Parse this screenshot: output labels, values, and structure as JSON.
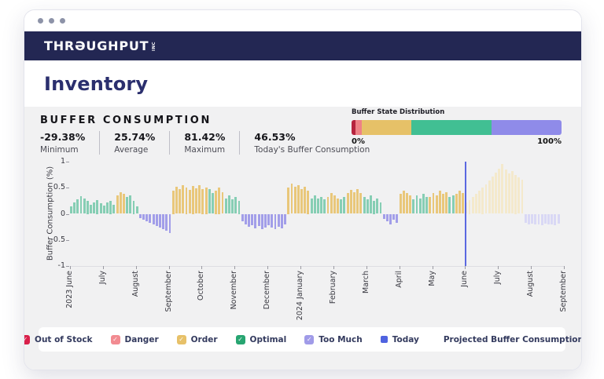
{
  "header": {
    "logo_prefix": "THR",
    "logo_o": "Ə",
    "logo_rest": "UGHPUT",
    "logo_suffix": "INC"
  },
  "page": {
    "title": "Inventory"
  },
  "panel": {
    "section_title": "BUFFER CONSUMPTION",
    "stats": [
      {
        "value": "-29.38%",
        "label": "Minimum"
      },
      {
        "value": "25.74%",
        "label": "Average"
      },
      {
        "value": "81.42%",
        "label": "Maximum"
      },
      {
        "value": "46.53%",
        "label": "Today's Buffer Consumption"
      }
    ],
    "distribution": {
      "title": "Buffer State Distribution",
      "min_label": "0%",
      "max_label": "100%",
      "segments": [
        {
          "name": "Out of Stock",
          "pct": 2.0,
          "color": "#b6233e"
        },
        {
          "name": "Danger",
          "pct": 2.7,
          "color": "#ee8186"
        },
        {
          "name": "Order",
          "pct": 23.8,
          "color": "#e6c168"
        },
        {
          "name": "Optimal",
          "pct": 38.0,
          "color": "#41bf93"
        },
        {
          "name": "Too Much",
          "pct": 33.5,
          "color": "#8f8be9"
        }
      ]
    }
  },
  "chart_data": {
    "type": "bar",
    "ylabel": "Buffer Consumption (%)",
    "ylim": [
      -1,
      1
    ],
    "yticks": [
      "1",
      "0.5",
      "0",
      "-0.5",
      "-1"
    ],
    "x_tick_labels": [
      "2023 June",
      "July",
      "August",
      "September",
      "October",
      "November",
      "December",
      "2024 January",
      "February",
      "March",
      "April",
      "May",
      "June",
      "July",
      "August",
      "September"
    ],
    "today_month_index": 12,
    "bar_categories": {
      "g": "Optimal",
      "o": "Order",
      "t": "Too Much",
      "po": "Projected Order",
      "pt": "Projected Too Much"
    },
    "colors": {
      "g": "#86ceb4",
      "o": "#e9c77a",
      "t": "#a29ee9",
      "po": "#f4e9cc",
      "pt": "#d9d8f5",
      "today_line": "#5b68e1"
    },
    "bars": [
      [
        0.15,
        "g"
      ],
      [
        0.22,
        "g"
      ],
      [
        0.28,
        "g"
      ],
      [
        0.34,
        "g"
      ],
      [
        0.3,
        "g"
      ],
      [
        0.25,
        "g"
      ],
      [
        0.18,
        "g"
      ],
      [
        0.22,
        "g"
      ],
      [
        0.27,
        "g"
      ],
      [
        0.2,
        "g"
      ],
      [
        0.16,
        "g"
      ],
      [
        0.22,
        "g"
      ],
      [
        0.25,
        "g"
      ],
      [
        0.18,
        "g"
      ],
      [
        0.35,
        "o"
      ],
      [
        0.42,
        "o"
      ],
      [
        0.38,
        "o"
      ],
      [
        0.32,
        "g"
      ],
      [
        0.35,
        "g"
      ],
      [
        0.25,
        "g"
      ],
      [
        0.15,
        "g"
      ],
      [
        -0.08,
        "t"
      ],
      [
        -0.11,
        "t"
      ],
      [
        -0.14,
        "t"
      ],
      [
        -0.17,
        "t"
      ],
      [
        -0.2,
        "t"
      ],
      [
        -0.23,
        "t"
      ],
      [
        -0.26,
        "t"
      ],
      [
        -0.29,
        "t"
      ],
      [
        -0.33,
        "t"
      ],
      [
        -0.37,
        "t"
      ],
      [
        0.45,
        "o"
      ],
      [
        0.52,
        "o"
      ],
      [
        0.48,
        "o"
      ],
      [
        0.55,
        "o"
      ],
      [
        0.5,
        "o"
      ],
      [
        0.46,
        "o"
      ],
      [
        0.53,
        "o"
      ],
      [
        0.49,
        "o"
      ],
      [
        0.55,
        "o"
      ],
      [
        0.47,
        "o"
      ],
      [
        0.5,
        "o"
      ],
      [
        0.48,
        "g"
      ],
      [
        0.4,
        "g"
      ],
      [
        0.45,
        "o"
      ],
      [
        0.5,
        "o"
      ],
      [
        0.42,
        "o"
      ],
      [
        0.3,
        "g"
      ],
      [
        0.35,
        "g"
      ],
      [
        0.28,
        "g"
      ],
      [
        0.32,
        "g"
      ],
      [
        0.25,
        "g"
      ],
      [
        -0.15,
        "t"
      ],
      [
        -0.2,
        "t"
      ],
      [
        -0.25,
        "t"
      ],
      [
        -0.22,
        "t"
      ],
      [
        -0.28,
        "t"
      ],
      [
        -0.24,
        "t"
      ],
      [
        -0.3,
        "t"
      ],
      [
        -0.26,
        "t"
      ],
      [
        -0.22,
        "t"
      ],
      [
        -0.27,
        "t"
      ],
      [
        -0.3,
        "t"
      ],
      [
        -0.25,
        "t"
      ],
      [
        -0.28,
        "t"
      ],
      [
        -0.2,
        "t"
      ],
      [
        0.5,
        "o"
      ],
      [
        0.58,
        "o"
      ],
      [
        0.52,
        "o"
      ],
      [
        0.55,
        "o"
      ],
      [
        0.48,
        "o"
      ],
      [
        0.52,
        "o"
      ],
      [
        0.45,
        "o"
      ],
      [
        0.3,
        "g"
      ],
      [
        0.36,
        "g"
      ],
      [
        0.3,
        "g"
      ],
      [
        0.33,
        "g"
      ],
      [
        0.28,
        "g"
      ],
      [
        0.32,
        "o"
      ],
      [
        0.4,
        "o"
      ],
      [
        0.36,
        "o"
      ],
      [
        0.3,
        "o"
      ],
      [
        0.28,
        "g"
      ],
      [
        0.33,
        "g"
      ],
      [
        0.4,
        "o"
      ],
      [
        0.46,
        "o"
      ],
      [
        0.42,
        "o"
      ],
      [
        0.48,
        "o"
      ],
      [
        0.4,
        "o"
      ],
      [
        0.32,
        "g"
      ],
      [
        0.28,
        "g"
      ],
      [
        0.35,
        "g"
      ],
      [
        0.25,
        "g"
      ],
      [
        0.3,
        "g"
      ],
      [
        0.22,
        "g"
      ],
      [
        -0.1,
        "t"
      ],
      [
        -0.15,
        "t"
      ],
      [
        -0.2,
        "t"
      ],
      [
        -0.12,
        "t"
      ],
      [
        -0.18,
        "t"
      ],
      [
        0.38,
        "o"
      ],
      [
        0.44,
        "o"
      ],
      [
        0.4,
        "o"
      ],
      [
        0.36,
        "o"
      ],
      [
        0.28,
        "g"
      ],
      [
        0.35,
        "g"
      ],
      [
        0.3,
        "g"
      ],
      [
        0.38,
        "g"
      ],
      [
        0.32,
        "g"
      ],
      [
        0.32,
        "o"
      ],
      [
        0.4,
        "o"
      ],
      [
        0.35,
        "o"
      ],
      [
        0.44,
        "o"
      ],
      [
        0.38,
        "o"
      ],
      [
        0.42,
        "o"
      ],
      [
        0.32,
        "g"
      ],
      [
        0.36,
        "g"
      ],
      [
        0.38,
        "o"
      ],
      [
        0.44,
        "o"
      ],
      [
        0.4,
        "o"
      ],
      [
        0.22,
        "po"
      ],
      [
        0.27,
        "po"
      ],
      [
        0.32,
        "po"
      ],
      [
        0.38,
        "po"
      ],
      [
        0.44,
        "po"
      ],
      [
        0.5,
        "po"
      ],
      [
        0.57,
        "po"
      ],
      [
        0.64,
        "po"
      ],
      [
        0.71,
        "po"
      ],
      [
        0.79,
        "po"
      ],
      [
        0.87,
        "po"
      ],
      [
        0.95,
        "po"
      ],
      [
        0.85,
        "po"
      ],
      [
        0.78,
        "po"
      ],
      [
        0.82,
        "po"
      ],
      [
        0.75,
        "po"
      ],
      [
        0.7,
        "po"
      ],
      [
        0.65,
        "po"
      ],
      [
        -0.18,
        "pt"
      ],
      [
        -0.2,
        "pt"
      ],
      [
        -0.19,
        "pt"
      ],
      [
        -0.21,
        "pt"
      ],
      [
        -0.2,
        "pt"
      ],
      [
        -0.22,
        "pt"
      ],
      [
        -0.19,
        "pt"
      ],
      [
        -0.21,
        "pt"
      ],
      [
        -0.2,
        "pt"
      ],
      [
        -0.22,
        "pt"
      ],
      [
        -0.19,
        "pt"
      ]
    ]
  },
  "legend": {
    "items": [
      {
        "label": "Out of Stock",
        "color": "#d91f4a",
        "style": "check"
      },
      {
        "label": "Danger",
        "color": "#f28b91",
        "style": "check"
      },
      {
        "label": "Order",
        "color": "#e7c169",
        "style": "check"
      },
      {
        "label": "Optimal",
        "color": "#27a571",
        "style": "check"
      },
      {
        "label": "Too Much",
        "color": "#a09be8",
        "style": "check"
      },
      {
        "label": "Today",
        "color": "#4f63e0",
        "style": "solid"
      },
      {
        "label": "Projected Buffer Consumption",
        "color": "#252a52",
        "style": "double"
      }
    ]
  }
}
